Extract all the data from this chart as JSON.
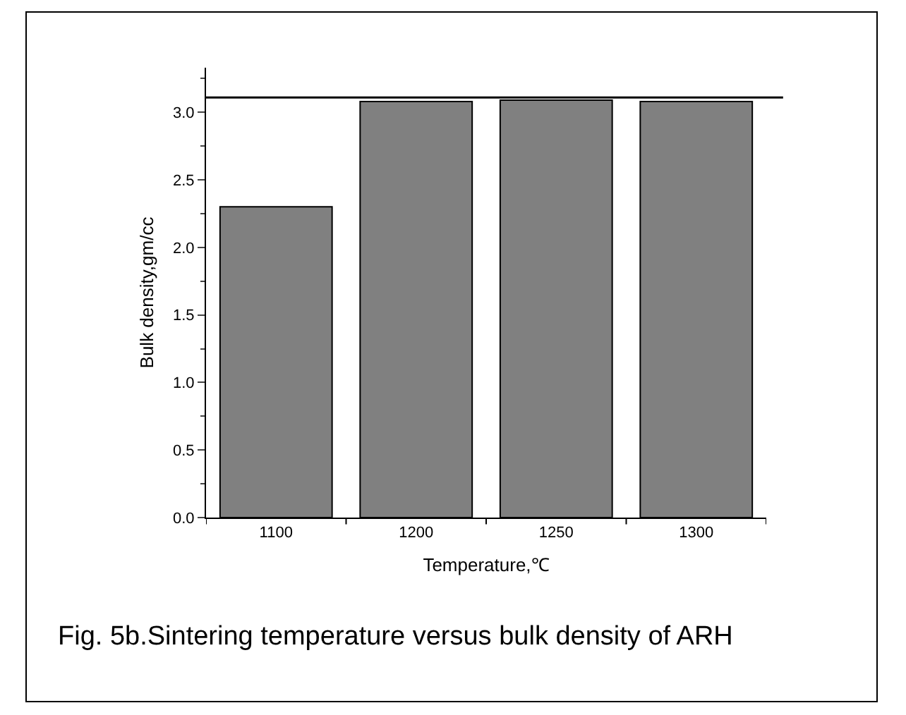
{
  "chart_data": {
    "type": "bar",
    "xlabel": "Temperature,℃",
    "ylabel": "Bulk density,gm/cc",
    "categories": [
      "1100",
      "1200",
      "1250",
      "1300"
    ],
    "values": [
      2.3,
      3.08,
      3.09,
      3.08
    ],
    "color": "#808080",
    "ylim": [
      0,
      3.33
    ],
    "yticks": [
      {
        "value": 0,
        "label": "0.0"
      },
      {
        "value": 0.5,
        "label": "0.5"
      },
      {
        "value": 1,
        "label": "1.0"
      },
      {
        "value": 1.5,
        "label": "1.5"
      },
      {
        "value": 2,
        "label": "2.0"
      },
      {
        "value": 2.5,
        "label": "2.5"
      },
      {
        "value": 3,
        "label": "3.0"
      }
    ],
    "ref_lines": [
      {
        "axis": "y",
        "value": 3.11,
        "color": "#000000"
      }
    ],
    "grid": false,
    "annotations": [
      "Fig. 5b.Sintering temperature versus bulk density of ARH"
    ]
  }
}
